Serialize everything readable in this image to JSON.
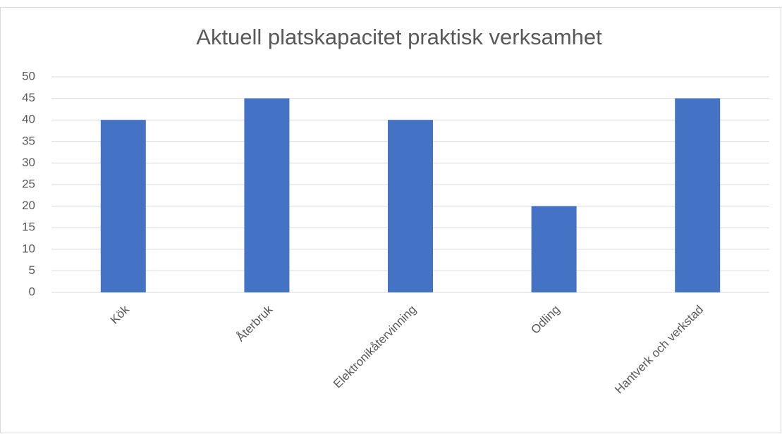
{
  "chart_data": {
    "type": "bar",
    "title": "Aktuell platskapacitet praktisk verksamhet",
    "categories": [
      "Kök",
      "Återbruk",
      "Elektronikåtervinning",
      "Odling",
      "Hantverk och verkstad"
    ],
    "values": [
      40,
      45,
      40,
      20,
      45
    ],
    "color": "#4472c4",
    "ylim": [
      0,
      50
    ],
    "yticks": [
      0,
      5,
      10,
      15,
      20,
      25,
      30,
      35,
      40,
      45,
      50
    ],
    "grid": true
  }
}
